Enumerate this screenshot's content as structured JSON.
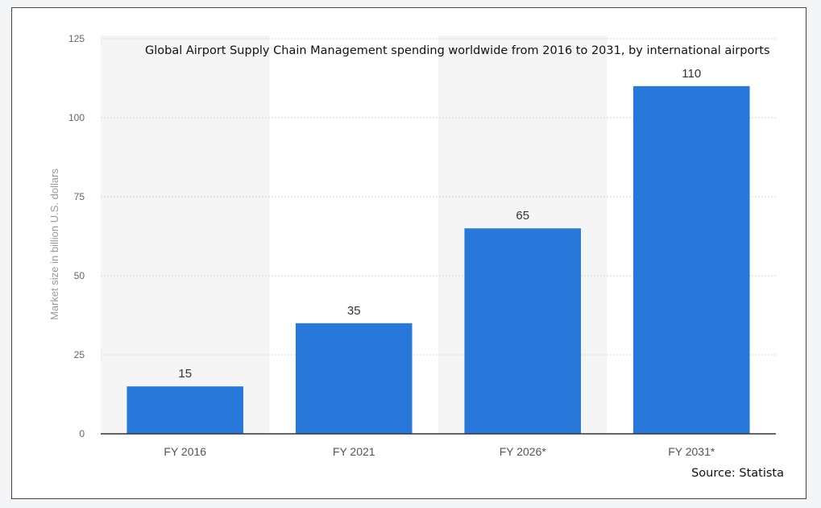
{
  "chart_data": {
    "type": "bar",
    "title": "Global Airport Supply Chain Management spending worldwide from 2016 to 2031, by international airports",
    "categories": [
      "FY 2016",
      "FY 2021",
      "FY 2026*",
      "FY 2031*"
    ],
    "values": [
      15,
      35,
      65,
      110
    ],
    "data_labels": [
      "15",
      "35",
      "65",
      "110"
    ],
    "xlabel": "",
    "ylabel": "Market size in billion U.S. dollars",
    "ylim": [
      0,
      125
    ],
    "yticks": [
      0,
      25,
      50,
      75,
      100,
      125
    ],
    "ytick_labels": [
      "0",
      "25",
      "50",
      "75",
      "100",
      "125"
    ],
    "grid": "horizontal dotted",
    "legend": "none",
    "bar_color": "#2878dc",
    "band_color": "#f5f5f5",
    "source": "Source: Statista"
  }
}
